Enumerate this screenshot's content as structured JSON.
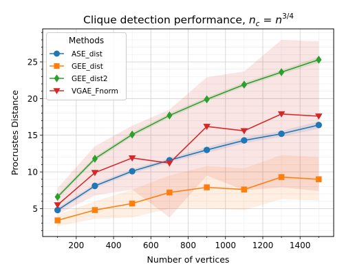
{
  "chart_data": {
    "type": "line",
    "title_prefix": "Clique detection performance, ",
    "title_math": "n",
    "title_sub": "c",
    "title_eq": " = ",
    "title_math2": "n",
    "title_sup": "3/4",
    "xlabel": "Number of vertices",
    "ylabel": "Procrustes Distance",
    "xlim": [
      20,
      1580
    ],
    "ylim": [
      1.2,
      29.5
    ],
    "xticks": [
      200,
      400,
      600,
      800,
      1000,
      1200,
      1400
    ],
    "yticks": [
      5,
      10,
      15,
      20,
      25
    ],
    "grid": true,
    "legend_position": "top-left",
    "legend_title": "Methods",
    "x": [
      100,
      300,
      500,
      700,
      900,
      1100,
      1300,
      1500
    ],
    "series": [
      {
        "name": "ASE_dist",
        "color": "#1f77b4",
        "marker": "circle",
        "values": [
          4.8,
          8.1,
          10.1,
          11.6,
          13.0,
          14.3,
          15.2,
          16.4
        ],
        "band_low": [
          4.5,
          7.8,
          9.8,
          11.3,
          12.6,
          13.9,
          14.8,
          15.9
        ],
        "band_high": [
          5.1,
          8.4,
          10.4,
          11.9,
          13.4,
          14.7,
          15.6,
          16.9
        ]
      },
      {
        "name": "GEE_dist",
        "color": "#ff7f0e",
        "marker": "square",
        "values": [
          3.4,
          4.8,
          5.7,
          7.2,
          7.9,
          7.6,
          9.3,
          9.0
        ],
        "band_low": [
          2.6,
          3.6,
          3.8,
          5.0,
          5.0,
          4.8,
          6.3,
          6.1
        ],
        "band_high": [
          4.2,
          6.0,
          7.6,
          9.5,
          10.8,
          10.5,
          12.3,
          12.0
        ]
      },
      {
        "name": "GEE_dist2",
        "color": "#2ca02c",
        "marker": "diamond",
        "values": [
          6.6,
          11.8,
          15.1,
          17.7,
          19.9,
          21.9,
          23.6,
          25.3
        ],
        "band_low": [
          6.3,
          11.5,
          14.8,
          17.4,
          19.6,
          21.6,
          23.3,
          24.9
        ],
        "band_high": [
          6.9,
          12.1,
          15.4,
          18.0,
          20.2,
          22.2,
          23.9,
          25.7
        ]
      },
      {
        "name": "VGAE_Fnorm",
        "color": "#d62728",
        "marker": "triangle-down",
        "values": [
          5.5,
          9.9,
          11.9,
          11.2,
          16.2,
          15.6,
          17.9,
          17.6
        ],
        "band_low": [
          4.2,
          6.8,
          7.6,
          3.8,
          9.5,
          7.5,
          7.9,
          7.4
        ],
        "band_high": [
          7.8,
          13.5,
          16.3,
          18.5,
          22.9,
          23.7,
          28.0,
          27.8
        ]
      }
    ]
  }
}
